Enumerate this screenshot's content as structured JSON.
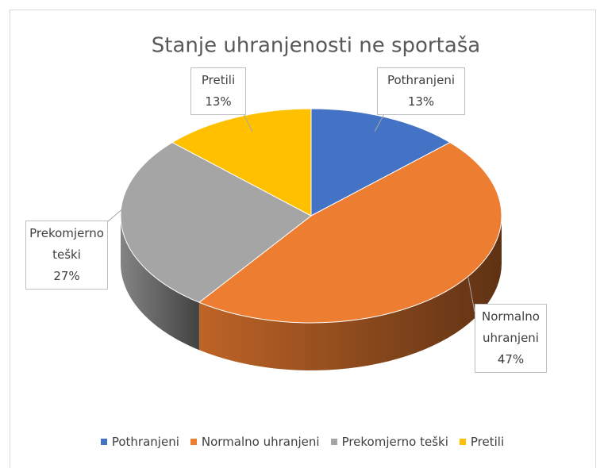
{
  "chart_data": {
    "type": "pie",
    "title": "Stanje uhranjenosti ne sportaša",
    "categories": [
      "Pothranjeni",
      "Normalno uhranjeni",
      "Prekomjerno teški",
      "Pretili"
    ],
    "values": [
      13,
      47,
      27,
      13
    ],
    "value_labels": [
      "13%",
      "47%",
      "27%",
      "13%"
    ],
    "colors": [
      "#4472c4",
      "#ed7d31",
      "#a5a5a5",
      "#ffc000"
    ],
    "legend": "bottom"
  }
}
